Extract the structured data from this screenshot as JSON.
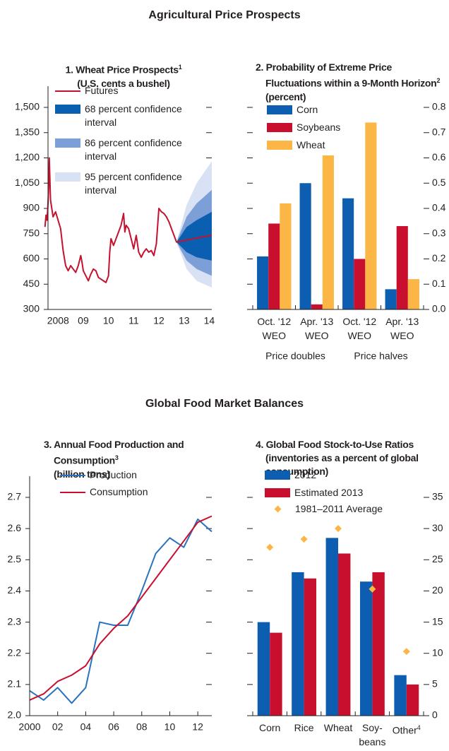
{
  "section_titles": [
    "Agricultural Price Prospects",
    "Global Food Market Balances"
  ],
  "chart_data": [
    {
      "type": "line",
      "title": "1. Wheat Price Prospects",
      "title_note": "1",
      "subtitle": "(U.S. cents a bushel)",
      "xlim": [
        2008.1,
        2014.6
      ],
      "xticks": [
        {
          "value": 2008.5,
          "label": "2008"
        },
        {
          "value": 2009.5,
          "label": "09"
        },
        {
          "value": 2010.5,
          "label": "10"
        },
        {
          "value": 2011.5,
          "label": "11"
        },
        {
          "value": 2012.5,
          "label": "12"
        },
        {
          "value": 2013.5,
          "label": "13"
        },
        {
          "value": 2014.5,
          "label": "14"
        }
      ],
      "ylim": [
        300,
        1500
      ],
      "yticks": [
        300,
        450,
        600,
        750,
        900,
        {
          "value": 1050,
          "label": "1,050"
        },
        {
          "value": 1200,
          "label": "1,200"
        },
        {
          "value": 1350,
          "label": "1,350"
        },
        {
          "value": 1500,
          "label": "1,500"
        }
      ],
      "y_axis": "left",
      "legend": "upper left",
      "series": [
        {
          "name": "Futures",
          "color": "#c4122f",
          "x": [
            2007.98,
            2008.02,
            2008.06,
            2008.09,
            2008.12,
            2008.15,
            2008.18,
            2008.2,
            2008.3,
            2008.4,
            2008.5,
            2008.6,
            2008.7,
            2008.8,
            2008.9,
            2009.0,
            2009.1,
            2009.2,
            2009.3,
            2009.4,
            2009.45,
            2009.5,
            2009.6,
            2009.7,
            2009.8,
            2009.9,
            2010.0,
            2010.1,
            2010.2,
            2010.3,
            2010.4,
            2010.5,
            2010.55,
            2010.6,
            2010.7,
            2010.8,
            2010.9,
            2011.0,
            2011.1,
            2011.15,
            2011.2,
            2011.3,
            2011.4,
            2011.5,
            2011.6,
            2011.7,
            2011.8,
            2011.9,
            2012.0,
            2012.1,
            2012.2,
            2012.3,
            2012.4,
            2012.5,
            2012.6,
            2012.7,
            2012.8,
            2012.9,
            2013.0,
            2013.1,
            2013.2,
            2013.7,
            2014.2,
            2014.6
          ],
          "values": [
            790,
            860,
            830,
            900,
            1000,
            1200,
            1050,
            950,
            850,
            880,
            830,
            780,
            650,
            560,
            530,
            560,
            540,
            520,
            560,
            620,
            580,
            530,
            500,
            470,
            510,
            540,
            530,
            490,
            480,
            470,
            460,
            500,
            640,
            720,
            680,
            720,
            760,
            800,
            870,
            760,
            800,
            780,
            720,
            660,
            740,
            640,
            610,
            640,
            660,
            640,
            650,
            620,
            690,
            900,
            880,
            870,
            850,
            820,
            780,
            740,
            700,
            715,
            730,
            740
          ]
        },
        {
          "name": "68 percent confidence interval",
          "color": "#0a5fb0",
          "x": [
            2013.2,
            2013.6,
            2014.0,
            2014.6
          ],
          "lower": [
            700,
            640,
            610,
            590
          ],
          "upper": [
            700,
            790,
            830,
            880
          ]
        },
        {
          "name": "86 percent confidence interval",
          "color": "#7c9fd8",
          "x": [
            2013.2,
            2013.6,
            2014.0,
            2014.6
          ],
          "lower": [
            700,
            590,
            540,
            500
          ],
          "upper": [
            700,
            850,
            930,
            1010
          ]
        },
        {
          "name": "95 percent confidence interval",
          "color": "#d8e2f4",
          "x": [
            2013.2,
            2013.6,
            2014.0,
            2014.6
          ],
          "lower": [
            700,
            540,
            470,
            430
          ],
          "upper": [
            700,
            920,
            1050,
            1180
          ]
        }
      ]
    },
    {
      "type": "bar",
      "title": "2. Probability of Extreme Price Fluctuations within a 9-Month Horizon",
      "title_note": "2",
      "subtitle": "(percent)",
      "categories": [
        "Oct. '12 WEO",
        "Apr. '13 WEO",
        "Oct. '12 WEO",
        "Apr. '13 WEO"
      ],
      "groups": [
        "Price doubles",
        "Price halves"
      ],
      "ylim": [
        0,
        0.8
      ],
      "yticks": [
        {
          "value": 0,
          "label": "0.0"
        },
        0.1,
        0.2,
        0.3,
        0.4,
        0.5,
        0.6,
        0.7,
        0.8
      ],
      "y_axis": "right",
      "legend": "upper left",
      "series": [
        {
          "name": "Corn",
          "color": "#0d5eb0",
          "values": [
            0.21,
            0.5,
            0.44,
            0.08
          ]
        },
        {
          "name": "Soybeans",
          "color": "#c8102e",
          "values": [
            0.34,
            0.02,
            0.2,
            0.33
          ]
        },
        {
          "name": "Wheat",
          "color": "#fbb645",
          "values": [
            0.42,
            0.61,
            0.74,
            0.12
          ]
        }
      ]
    },
    {
      "type": "line",
      "title": "3. Annual Food Production and Consumption",
      "title_note": "3",
      "subtitle": "(billion tons)",
      "xlim": [
        2000,
        2013
      ],
      "xticks": [
        2000,
        {
          "value": 2002,
          "label": "02"
        },
        {
          "value": 2004,
          "label": "04"
        },
        {
          "value": 2006,
          "label": "06"
        },
        {
          "value": 2008,
          "label": "08"
        },
        {
          "value": 2010,
          "label": "10"
        },
        {
          "value": 2012,
          "label": "12"
        }
      ],
      "ylim": [
        2,
        2.7
      ],
      "yticks": [
        {
          "value": 2,
          "label": "2.0"
        },
        2.1,
        2.2,
        2.3,
        2.4,
        2.5,
        2.6,
        2.7
      ],
      "y_axis": "left",
      "legend": "upper left",
      "series": [
        {
          "name": "Production",
          "color": "#2a72c0",
          "x": [
            2000,
            2001,
            2002,
            2003,
            2004,
            2005,
            2006,
            2007,
            2008,
            2009,
            2010,
            2011,
            2012,
            2013
          ],
          "values": [
            2.08,
            2.05,
            2.09,
            2.04,
            2.09,
            2.3,
            2.29,
            2.29,
            2.4,
            2.52,
            2.57,
            2.54,
            2.63,
            2.59
          ]
        },
        {
          "name": "Consumption",
          "color": "#c8102e",
          "x": [
            2000,
            2001,
            2002,
            2003,
            2004,
            2005,
            2006,
            2007,
            2008,
            2009,
            2010,
            2011,
            2012,
            2013
          ],
          "values": [
            2.05,
            2.07,
            2.11,
            2.13,
            2.16,
            2.23,
            2.28,
            2.32,
            2.38,
            2.44,
            2.5,
            2.56,
            2.62,
            2.64
          ]
        }
      ]
    },
    {
      "type": "bar",
      "title": "4. Global Food Stock-to-Use Ratios",
      "subtitle": "(inventories as a percent of global consumption)",
      "categories": [
        "Corn",
        "Rice",
        "Wheat",
        "Soy- beans",
        "Other"
      ],
      "category_notes": [
        null,
        null,
        null,
        null,
        "4"
      ],
      "ylim": [
        0,
        35
      ],
      "yticks": [
        0,
        5,
        10,
        15,
        20,
        25,
        30,
        35
      ],
      "y_axis": "right",
      "legend": "upper left",
      "series": [
        {
          "name": "2012",
          "color": "#0d5eb0",
          "values": [
            15,
            23,
            28.5,
            21.5,
            6.5
          ]
        },
        {
          "name": "Estimated 2013",
          "color": "#c8102e",
          "values": [
            13.3,
            22,
            26,
            23,
            5
          ]
        },
        {
          "name": "1981–2011 Average",
          "color": "#fbb645",
          "marker": "diamond",
          "values": [
            27,
            28.3,
            30,
            20.3,
            10.3
          ]
        }
      ]
    }
  ]
}
